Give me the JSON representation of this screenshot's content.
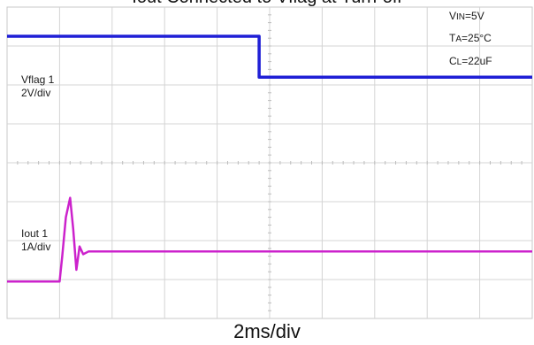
{
  "chart_data": {
    "type": "line",
    "title": "Iout Connected to Vflag at Turn-off",
    "xlabel": "2ms/div",
    "x_divisions": 10,
    "y_divisions": 8,
    "grid": true,
    "conditions": [
      {
        "main": "V",
        "sub": "IN",
        "rest": "=5V"
      },
      {
        "main": "T",
        "sub": "A",
        "rest": "=25°C"
      },
      {
        "main": "C",
        "sub": "L",
        "rest": "=22uF"
      }
    ],
    "series": [
      {
        "name": "Vflag 1",
        "scale": "2V/div",
        "color": "#1f1fd6",
        "x_div": [
          0,
          4.8,
          4.8,
          10
        ],
        "y_div": [
          7.25,
          7.25,
          6.2,
          6.2
        ]
      },
      {
        "name": "Iout 1",
        "scale": "1A/div",
        "color": "#cc22cc",
        "x_div": [
          0,
          1.0,
          1.05,
          1.12,
          1.2,
          1.26,
          1.32,
          1.38,
          1.45,
          1.55,
          10
        ],
        "y_div": [
          0.95,
          0.95,
          1.6,
          2.6,
          3.1,
          2.3,
          1.25,
          1.85,
          1.65,
          1.72,
          1.72
        ]
      }
    ]
  }
}
